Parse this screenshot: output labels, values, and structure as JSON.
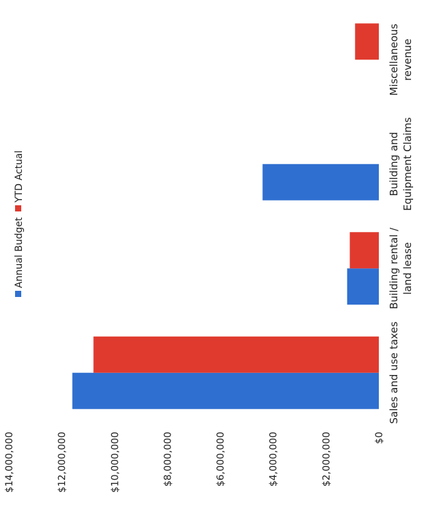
{
  "chart_data": {
    "type": "bar",
    "orientation": "vertical",
    "rotated": "page rotated 90 degrees counter-clockwise",
    "categories": [
      [
        "Sales and use taxes"
      ],
      [
        "Building rental /",
        "land lease"
      ],
      [
        "Building and",
        "Equipment Claims"
      ],
      [
        "Miscellaneous",
        "revenue"
      ]
    ],
    "series": [
      {
        "name": "Annual Budget",
        "color": "#2f6fd0",
        "values": [
          11600000,
          1200000,
          4400000,
          0
        ]
      },
      {
        "name": "YTD Actual",
        "color": "#e03a2f",
        "values": [
          10800000,
          1100000,
          0,
          900000
        ]
      }
    ],
    "y_ticks": [
      "$0",
      "$2,000,000",
      "$4,000,000",
      "$6,000,000",
      "$8,000,000",
      "$10,000,000",
      "$12,000,000",
      "$14,000,000"
    ],
    "ylim": [
      0,
      14000000
    ],
    "grid": false,
    "legend_position": "top"
  }
}
